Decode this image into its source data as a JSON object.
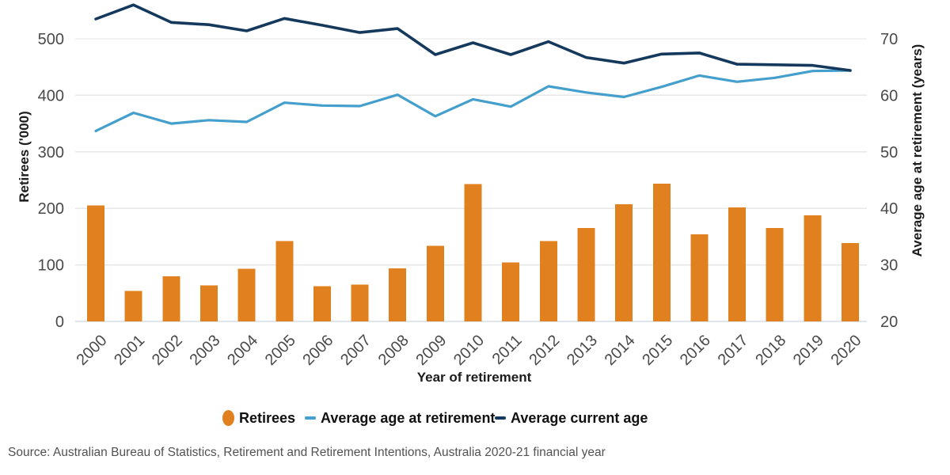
{
  "chart_data": {
    "type": "combo: bar + 2 lines (dual axis)",
    "title": "",
    "categories": [
      "2000",
      "2001",
      "2002",
      "2003",
      "2004",
      "2005",
      "2006",
      "2007",
      "2008",
      "2009",
      "2010",
      "2011",
      "2012",
      "2013",
      "2014",
      "2015",
      "2016",
      "2017",
      "2018",
      "2019",
      "2020"
    ],
    "series": [
      {
        "name": "Retirees",
        "chart": "bar",
        "axis": "left",
        "unit": "'000",
        "color": "#E0801E",
        "values": [
          205,
          54,
          80,
          64,
          93,
          142,
          62,
          65,
          94,
          134,
          243,
          104,
          142,
          165,
          207,
          244,
          154,
          202,
          165,
          188,
          139
        ]
      },
      {
        "name": "Average age at retirement",
        "chart": "line",
        "axis": "right",
        "unit": "years",
        "color": "#459FCD",
        "values": [
          53.7,
          56.9,
          55.0,
          55.6,
          55.3,
          58.7,
          58.2,
          58.1,
          60.1,
          56.3,
          59.3,
          58.0,
          61.6,
          60.5,
          59.7,
          61.5,
          63.5,
          62.4,
          63.1,
          64.3,
          64.4
        ]
      },
      {
        "name": "Average current age",
        "chart": "line",
        "axis": "right",
        "unit": "years",
        "color": "#14395C",
        "values": [
          73.5,
          76.0,
          72.9,
          72.5,
          71.4,
          73.6,
          72.4,
          71.1,
          71.8,
          67.2,
          69.3,
          67.2,
          69.5,
          66.7,
          65.7,
          67.3,
          67.5,
          65.5,
          65.4,
          65.3,
          64.4
        ]
      }
    ],
    "x_axis": {
      "label": "Year of retirement"
    },
    "left_axis": {
      "label": "Retirees ('000)",
      "ticks": [
        0,
        100,
        200,
        300,
        400,
        500
      ],
      "range": [
        0,
        570
      ]
    },
    "right_axis": {
      "label": "Average age at retirement (years)",
      "ticks": [
        20,
        30,
        40,
        50,
        60,
        70
      ],
      "range": [
        20,
        77
      ]
    },
    "grid": "horizontal gridlines on",
    "legend_position": "bottom",
    "legend": [
      {
        "label": "Retirees",
        "swatch": "circle"
      },
      {
        "label": "Average age at retirement",
        "swatch": "line"
      },
      {
        "label": "Average current age",
        "swatch": "line"
      }
    ],
    "colors": {
      "baseline_axis": "#C2CEDC",
      "gridline": "#E7E7E7",
      "tick_text": "#4a4a4a"
    }
  },
  "source_note": "Source: Australian Bureau of Statistics, Retirement and Retirement Intentions, Australia 2020-21 financial year"
}
